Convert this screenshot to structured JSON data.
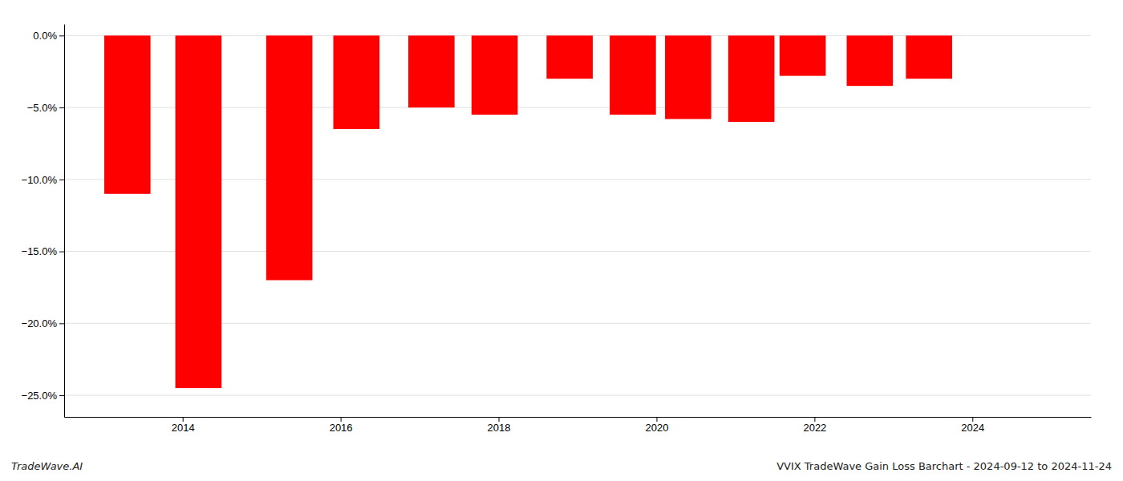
{
  "chart_data": {
    "type": "bar",
    "x": [
      2013.3,
      2014.2,
      2015.35,
      2016.2,
      2017.15,
      2017.95,
      2018.9,
      2019.7,
      2020.4,
      2021.2,
      2021.85,
      2022.7,
      2023.45
    ],
    "values": [
      -11.0,
      -24.5,
      -17.0,
      -6.5,
      -5.0,
      -5.5,
      -3.0,
      -5.5,
      -5.8,
      -6.0,
      -2.8,
      -3.5,
      -3.0
    ],
    "color": "#ff0000",
    "xlim": [
      2012.5,
      2025.5
    ],
    "xticks": [
      2014,
      2016,
      2018,
      2020,
      2022,
      2024
    ],
    "ylim": [
      -26.5,
      0.8
    ],
    "yticks": [
      {
        "value": 0.0,
        "label": "0.0%"
      },
      {
        "value": -5.0,
        "label": "−5.0%"
      },
      {
        "value": -10.0,
        "label": "−10.0%"
      },
      {
        "value": -15.0,
        "label": "−15.0%"
      },
      {
        "value": -20.0,
        "label": "−20.0%"
      },
      {
        "value": -25.0,
        "label": "−25.0%"
      }
    ],
    "grid": true,
    "annotations": [
      "TradeWave.AI",
      "VVIX TradeWave Gain Loss Barchart - 2024-09-12 to 2024-11-24"
    ]
  }
}
